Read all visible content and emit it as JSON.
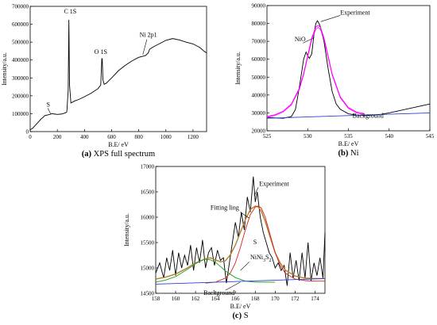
{
  "colors": {
    "axis": "#000000",
    "experiment": "#000000",
    "fit": "#ff00ff",
    "nio": "#ff00ff",
    "background": "#2b3fd6",
    "ni3s2": "#1a9a1a",
    "s_peak": "#d62020",
    "fitting": "#b08030"
  },
  "chart_data": [
    {
      "type": "line",
      "caption_letter": "(a)",
      "caption_text": " XPS full spectrum",
      "xlabel": "B.E/ eV",
      "ylabel": "Intensity/a.u.",
      "xlim": [
        0,
        1300
      ],
      "ylim": [
        0,
        700000
      ],
      "xticks": [
        0,
        200,
        400,
        600,
        800,
        1000,
        1200
      ],
      "yticks": [
        0,
        100000,
        200000,
        300000,
        400000,
        500000,
        600000,
        700000
      ],
      "annotations": [
        "S",
        "C 1S",
        "O 1S",
        "Ni  2p1"
      ],
      "series": [
        {
          "values_x": [
            0,
            20,
            50,
            80,
            110,
            140,
            160,
            180,
            200,
            230,
            260,
            270,
            280,
            285,
            290,
            300,
            330,
            360,
            400,
            450,
            500,
            520,
            528,
            531,
            536,
            545,
            560,
            600,
            650,
            700,
            750,
            800,
            850,
            870,
            880,
            900,
            950,
            1000,
            1050,
            1100,
            1150,
            1200,
            1250,
            1280,
            1300
          ],
          "values_y": [
            10000,
            20000,
            45000,
            70000,
            90000,
            95000,
            100000,
            98000,
            96000,
            98000,
            105000,
            110000,
            230000,
            625000,
            260000,
            160000,
            172000,
            180000,
            195000,
            215000,
            240000,
            260000,
            410000,
            405000,
            290000,
            265000,
            270000,
            300000,
            340000,
            370000,
            395000,
            415000,
            425000,
            440000,
            460000,
            470000,
            490000,
            510000,
            520000,
            512000,
            500000,
            490000,
            470000,
            450000,
            440000
          ]
        }
      ]
    },
    {
      "type": "line",
      "caption_letter": "(b)",
      "caption_text": " Ni",
      "xlabel": "B.E/ eV",
      "ylabel": "Intensity/a.u.",
      "xlim": [
        525,
        545
      ],
      "ylim": [
        20000,
        90000
      ],
      "xticks": [
        525,
        530,
        535,
        540,
        545
      ],
      "yticks": [
        20000,
        30000,
        40000,
        50000,
        60000,
        70000,
        80000,
        90000
      ],
      "annotations": [
        "NiO",
        "Experiment",
        "Background"
      ],
      "series": [
        {
          "name": "Experiment",
          "x": [
            525,
            526,
            527,
            528,
            528.5,
            529,
            529.5,
            529.8,
            530,
            530.2,
            530.5,
            530.8,
            531,
            531.2,
            531.5,
            532,
            532.5,
            533,
            533.5,
            534,
            535,
            536,
            537,
            538,
            539,
            540,
            541,
            542,
            543,
            544,
            545
          ],
          "y": [
            27500,
            27200,
            27000,
            28000,
            32000,
            45000,
            60000,
            64000,
            62000,
            60500,
            63000,
            75000,
            80000,
            81500,
            79000,
            70000,
            55000,
            42000,
            35000,
            32000,
            29500,
            28800,
            28500,
            28800,
            29200,
            30000,
            31000,
            32000,
            33000,
            34000,
            35000
          ]
        },
        {
          "name": "NiO",
          "x": [
            525,
            526,
            527,
            528,
            529,
            529.5,
            530,
            530.5,
            531,
            531.3,
            531.6,
            532,
            532.5,
            533,
            534,
            535,
            536,
            537
          ],
          "y": [
            28000,
            29000,
            31000,
            35000,
            44000,
            52000,
            62000,
            72000,
            78000,
            79000,
            77500,
            72000,
            62000,
            52000,
            39000,
            33000,
            30500,
            29500
          ]
        },
        {
          "name": "Background",
          "x": [
            525,
            545
          ],
          "y": [
            27000,
            30000
          ]
        }
      ]
    },
    {
      "type": "line",
      "caption_letter": "(c)",
      "caption_text": " S",
      "xlabel": "B.E/ eV",
      "ylabel": "Intensity/a.u.",
      "xlim": [
        158,
        175
      ],
      "ylim": [
        14500,
        17000
      ],
      "xticks": [
        158,
        160,
        162,
        164,
        166,
        168,
        170,
        172,
        174
      ],
      "yticks": [
        14500,
        15000,
        15500,
        16000,
        16500,
        17000
      ],
      "annotations": [
        "Experiment",
        "Fitting ling",
        "S",
        "Ni",
        "3",
        "S",
        "2",
        "Background"
      ],
      "series": [
        {
          "name": "Experiment",
          "x": [
            158,
            158.4,
            158.8,
            159.1,
            159.4,
            159.7,
            160,
            160.3,
            160.6,
            160.9,
            161.2,
            161.5,
            161.8,
            162.1,
            162.4,
            162.7,
            163,
            163.3,
            163.6,
            163.9,
            164.2,
            164.5,
            164.8,
            165.1,
            165.4,
            165.7,
            166,
            166.3,
            166.6,
            166.9,
            167.2,
            167.5,
            167.8,
            168,
            168.2,
            168.5,
            168.8,
            169.1,
            169.4,
            169.7,
            170,
            170.3,
            170.6,
            170.9,
            171.2,
            171.5,
            171.8,
            172.1,
            172.4,
            172.7,
            173,
            173.3,
            173.6,
            173.9,
            174.2,
            174.5,
            174.8,
            175
          ],
          "y": [
            14900,
            15100,
            14800,
            15200,
            14950,
            15350,
            14850,
            15300,
            15000,
            15250,
            15050,
            15450,
            14950,
            15400,
            15100,
            15550,
            15000,
            15300,
            15400,
            15050,
            15350,
            15150,
            15200,
            14700,
            15100,
            15500,
            15900,
            15600,
            16100,
            15750,
            16400,
            16100,
            16800,
            16300,
            16500,
            16000,
            15700,
            15500,
            15300,
            15200,
            15000,
            15100,
            14950,
            15050,
            14650,
            15300,
            14800,
            15150,
            14750,
            15300,
            14800,
            15500,
            14750,
            15100,
            14850,
            15200,
            14800,
            15700
          ]
        },
        {
          "name": "Fitting ling",
          "x": [
            158,
            159,
            160,
            161,
            162,
            163,
            163.5,
            164,
            164.5,
            165,
            165.5,
            166,
            166.5,
            167,
            167.5,
            168,
            168.3,
            168.6,
            169,
            169.5,
            170,
            170.5,
            171,
            172,
            173,
            174,
            175
          ],
          "y": [
            14780,
            14820,
            14880,
            14980,
            15100,
            15180,
            15200,
            15160,
            15120,
            15140,
            15260,
            15450,
            15700,
            15950,
            16150,
            16220,
            16200,
            16120,
            15920,
            15600,
            15300,
            15100,
            14960,
            14840,
            14800,
            14790,
            14790
          ]
        },
        {
          "name": "S",
          "x": [
            163,
            164,
            165,
            165.5,
            166,
            166.5,
            167,
            167.5,
            168,
            168.3,
            168.6,
            169,
            169.5,
            170,
            170.5,
            171,
            172,
            173,
            174,
            175
          ],
          "y": [
            14700,
            14720,
            14800,
            14900,
            15100,
            15400,
            15750,
            16050,
            16200,
            16220,
            16180,
            16000,
            15650,
            15300,
            15050,
            14900,
            14780,
            14750,
            14740,
            14740
          ]
        },
        {
          "name": "Ni3S2",
          "x": [
            158,
            159,
            160,
            161,
            162,
            162.5,
            163,
            163.5,
            164,
            164.5,
            165,
            166,
            167,
            168,
            169,
            170
          ],
          "y": [
            14720,
            14760,
            14830,
            14950,
            15080,
            15140,
            15170,
            15160,
            15110,
            15030,
            14940,
            14810,
            14740,
            14720,
            14720,
            14720
          ]
        },
        {
          "name": "Background",
          "x": [
            158,
            175
          ],
          "y": [
            14680,
            14790
          ]
        }
      ]
    }
  ]
}
